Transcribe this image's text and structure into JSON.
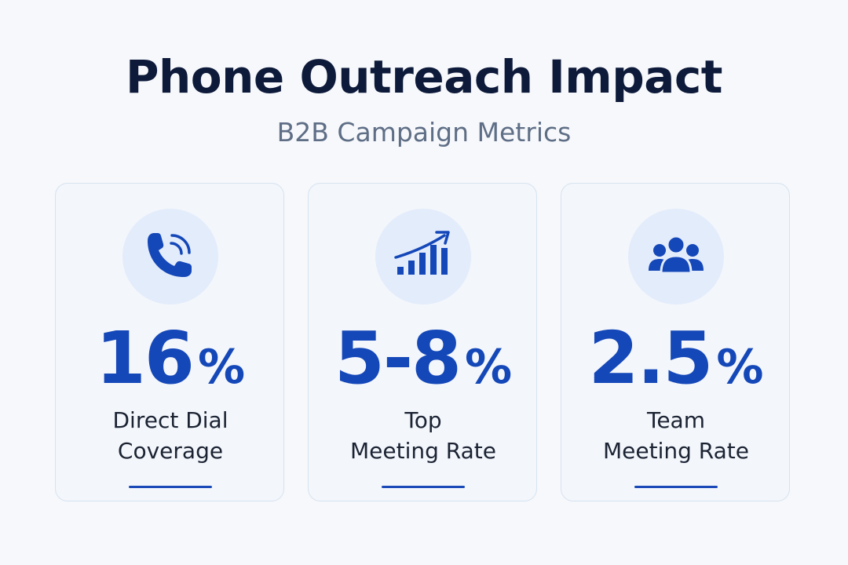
{
  "header": {
    "title": "Phone Outreach Impact",
    "subtitle": "B2B Campaign Metrics"
  },
  "colors": {
    "accent": "#1447b8",
    "icon_background": "#e3ecfb",
    "card_background": "#f3f6fb",
    "title": "#0d1a3a",
    "subtitle": "#5e6e86"
  },
  "cards": [
    {
      "icon": "phone-ringing-icon",
      "value": "16",
      "unit": "%",
      "label_line1": "Direct Dial",
      "label_line2": "Coverage"
    },
    {
      "icon": "growth-chart-icon",
      "value": "5-8",
      "unit": "%",
      "label_line1": "Top",
      "label_line2": "Meeting Rate"
    },
    {
      "icon": "team-group-icon",
      "value": "2.5",
      "unit": "%",
      "label_line1": "Team",
      "label_line2": "Meeting Rate"
    }
  ]
}
